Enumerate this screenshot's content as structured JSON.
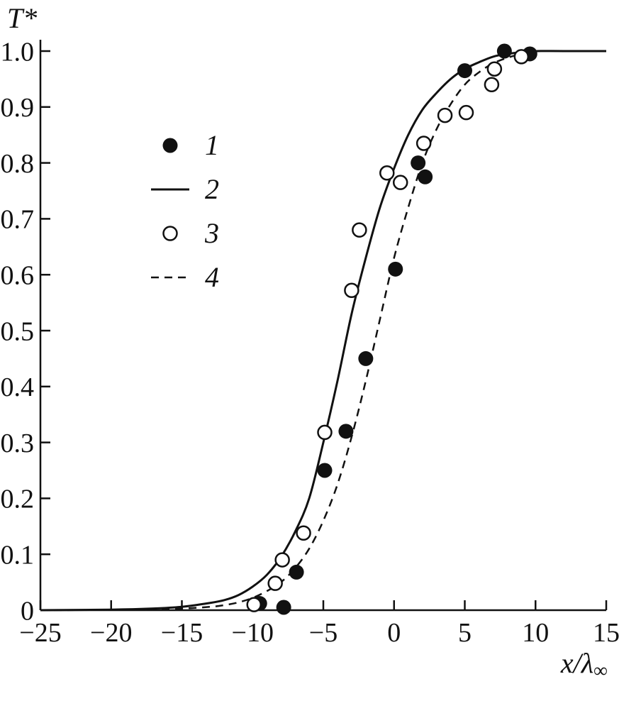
{
  "figure": {
    "background": "#ffffff",
    "ink": "#111111"
  },
  "chart_data": {
    "type": "line",
    "title": "",
    "ylabel": "T*",
    "xlabel_main": "x/λ",
    "xlabel_sub": "∞",
    "xlim": [
      -25,
      15
    ],
    "ylim": [
      0,
      1.0
    ],
    "grid": false,
    "legend_position": "upper-left-inside",
    "x_ticks": [
      {
        "v": -25,
        "label": "−25"
      },
      {
        "v": -20,
        "label": "−20"
      },
      {
        "v": -15,
        "label": "−15"
      },
      {
        "v": -10,
        "label": "−10"
      },
      {
        "v": -5,
        "label": "−5"
      },
      {
        "v": 0,
        "label": "0"
      },
      {
        "v": 5,
        "label": "5"
      },
      {
        "v": 10,
        "label": "10"
      },
      {
        "v": 15,
        "label": "15"
      }
    ],
    "y_ticks": [
      {
        "v": 0.0,
        "label": "0"
      },
      {
        "v": 0.1,
        "label": "0.1"
      },
      {
        "v": 0.2,
        "label": "0.2"
      },
      {
        "v": 0.3,
        "label": "0.3"
      },
      {
        "v": 0.4,
        "label": "0.4"
      },
      {
        "v": 0.5,
        "label": "0.5"
      },
      {
        "v": 0.6,
        "label": "0.6"
      },
      {
        "v": 0.7,
        "label": "0.7"
      },
      {
        "v": 0.8,
        "label": "0.8"
      },
      {
        "v": 0.9,
        "label": "0.9"
      },
      {
        "v": 1.0,
        "label": "1.0"
      }
    ],
    "series": [
      {
        "name": "data-filled-circles",
        "label": "1",
        "type": "scatter",
        "marker": "filled-circle",
        "points": [
          [
            -9.5,
            0.012
          ],
          [
            -7.8,
            0.003
          ],
          [
            -6.9,
            0.068
          ],
          [
            -4.9,
            0.25
          ],
          [
            -3.4,
            0.32
          ],
          [
            -2.0,
            0.45
          ],
          [
            0.1,
            0.61
          ],
          [
            1.7,
            0.8
          ],
          [
            2.2,
            0.775
          ],
          [
            5.0,
            0.965
          ],
          [
            7.8,
            1.0
          ],
          [
            9.6,
            0.995
          ]
        ]
      },
      {
        "name": "curve-solid",
        "label": "2",
        "type": "line",
        "style": "solid",
        "points": [
          [
            -25,
            0.0
          ],
          [
            -20,
            0.001
          ],
          [
            -17,
            0.003
          ],
          [
            -15,
            0.006
          ],
          [
            -13,
            0.013
          ],
          [
            -12,
            0.018
          ],
          [
            -11,
            0.027
          ],
          [
            -10,
            0.042
          ],
          [
            -9,
            0.063
          ],
          [
            -8,
            0.095
          ],
          [
            -7,
            0.14
          ],
          [
            -6,
            0.2
          ],
          [
            -5,
            0.3
          ],
          [
            -4,
            0.41
          ],
          [
            -3,
            0.53
          ],
          [
            -2,
            0.63
          ],
          [
            -1,
            0.72
          ],
          [
            0,
            0.79
          ],
          [
            1,
            0.85
          ],
          [
            2,
            0.895
          ],
          [
            3,
            0.925
          ],
          [
            4,
            0.95
          ],
          [
            5,
            0.968
          ],
          [
            6,
            0.98
          ],
          [
            7,
            0.99
          ],
          [
            8,
            0.995
          ],
          [
            9,
            0.998
          ],
          [
            10,
            1.0
          ],
          [
            12,
            1.0
          ],
          [
            15,
            1.0
          ]
        ]
      },
      {
        "name": "data-open-circles",
        "label": "3",
        "type": "scatter",
        "marker": "open-circle",
        "points": [
          [
            -9.9,
            0.01
          ],
          [
            -8.4,
            0.048
          ],
          [
            -7.9,
            0.09
          ],
          [
            -6.4,
            0.138
          ],
          [
            -4.9,
            0.318
          ],
          [
            -3.0,
            0.572
          ],
          [
            -2.45,
            0.68
          ],
          [
            -0.5,
            0.782
          ],
          [
            0.45,
            0.765
          ],
          [
            2.1,
            0.835
          ],
          [
            3.6,
            0.885
          ],
          [
            5.1,
            0.89
          ],
          [
            6.9,
            0.94
          ],
          [
            7.1,
            0.968
          ],
          [
            9.0,
            0.99
          ]
        ]
      },
      {
        "name": "curve-dashed",
        "label": "4",
        "type": "line",
        "style": "dashed",
        "points": [
          [
            -25,
            0.0
          ],
          [
            -18,
            0.001
          ],
          [
            -15,
            0.003
          ],
          [
            -13,
            0.006
          ],
          [
            -12,
            0.009
          ],
          [
            -11,
            0.014
          ],
          [
            -10,
            0.022
          ],
          [
            -9,
            0.034
          ],
          [
            -8,
            0.05
          ],
          [
            -7,
            0.075
          ],
          [
            -6,
            0.11
          ],
          [
            -5,
            0.16
          ],
          [
            -4,
            0.225
          ],
          [
            -3,
            0.31
          ],
          [
            -2,
            0.41
          ],
          [
            -1,
            0.52
          ],
          [
            0,
            0.63
          ],
          [
            1,
            0.72
          ],
          [
            2,
            0.8
          ],
          [
            3,
            0.86
          ],
          [
            4,
            0.905
          ],
          [
            5,
            0.94
          ],
          [
            6,
            0.962
          ],
          [
            7,
            0.978
          ],
          [
            8,
            0.988
          ],
          [
            9,
            0.995
          ],
          [
            10,
            1.0
          ],
          [
            12,
            1.0
          ],
          [
            15,
            1.0
          ]
        ]
      }
    ]
  }
}
